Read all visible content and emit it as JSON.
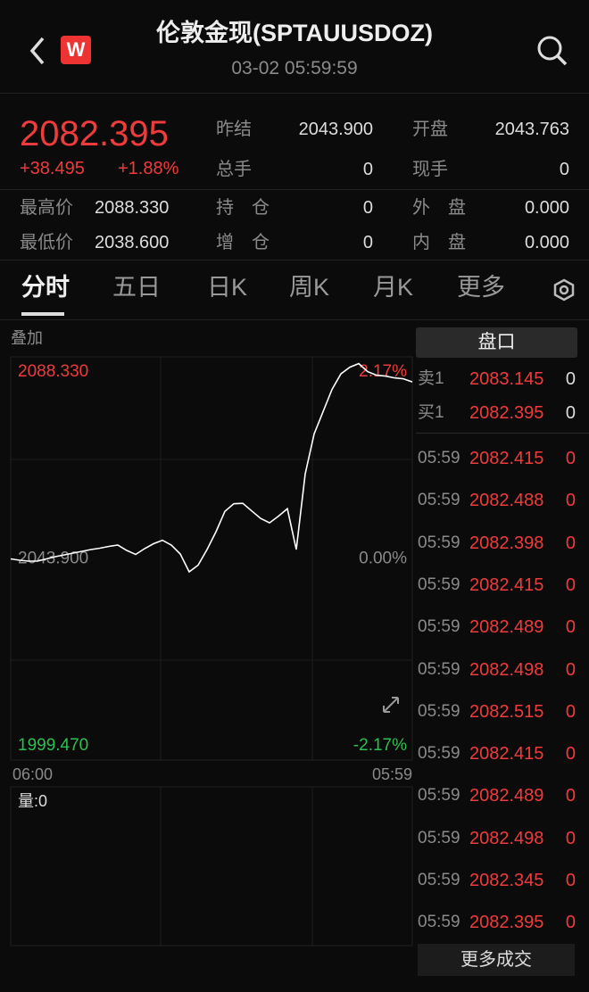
{
  "header": {
    "title": "伦敦金现(SPTAUUSDOZ)",
    "time": "03-02 05:59:59"
  },
  "quote": {
    "price": "2082.395",
    "change": "+38.495",
    "pct": "+1.88%",
    "left_stats": [
      {
        "label": "最高价",
        "value": "2088.330"
      },
      {
        "label": "最低价",
        "value": "2038.600"
      }
    ],
    "stats": [
      [
        {
          "label": "昨结",
          "value": "2043.900"
        },
        {
          "label": "开盘",
          "value": "2043.763"
        }
      ],
      [
        {
          "label": "总手",
          "value": "0"
        },
        {
          "label": "现手",
          "value": "0"
        }
      ],
      [
        {
          "label": "持　仓",
          "value": "0"
        },
        {
          "label": "外　盘",
          "value": "0.000"
        }
      ],
      [
        {
          "label": "增　仓",
          "value": "0"
        },
        {
          "label": "内　盘",
          "value": "0.000"
        }
      ]
    ]
  },
  "tabs": [
    "分时",
    "五日",
    "日K",
    "周K",
    "月K",
    "更多"
  ],
  "overlay": "叠加",
  "chart_data": {
    "type": "line",
    "color": "#ffffff",
    "values": [
      2043.9,
      2043.6,
      2043.4,
      2043.4,
      2043.9,
      2044.4,
      2044.8,
      2045.2,
      2045.6,
      2046.0,
      2046.3,
      2046.7,
      2047.0,
      2045.8,
      2044.9,
      2046.2,
      2047.3,
      2048.1,
      2047.0,
      2045.0,
      2041.0,
      2042.5,
      2046.0,
      2050.0,
      2054.6,
      2056.3,
      2056.4,
      2054.7,
      2053.0,
      2052.0,
      2053.5,
      2055.2,
      2046.0,
      2063.0,
      2072.0,
      2077.0,
      2082.0,
      2085.5,
      2087.0,
      2087.8,
      2086.0,
      2085.2,
      2085.0,
      2084.6,
      2084.4,
      2083.7
    ],
    "ylim": [
      1999.47,
      2088.33
    ],
    "yticks": [
      {
        "value": 2088.33,
        "label": "2088.330"
      },
      {
        "value": 2043.9,
        "label": "2043.900"
      },
      {
        "value": 1999.47,
        "label": "1999.470"
      }
    ],
    "y2lim": [
      -2.17,
      2.17
    ],
    "y2ticks": [
      {
        "value": 2.17,
        "label": "2.17%"
      },
      {
        "value": 0,
        "label": "0.00%"
      },
      {
        "value": -2.17,
        "label": "-2.17%"
      }
    ],
    "xtick_labels": [
      "06:00",
      "05:59"
    ],
    "volume_label": "量:0"
  },
  "order_book": {
    "title": "盘口",
    "levels": [
      {
        "label": "卖1",
        "price": "2083.145",
        "vol": "0"
      },
      {
        "label": "买1",
        "price": "2082.395",
        "vol": "0"
      }
    ],
    "trades": [
      [
        "05:59",
        "2082.415",
        "0"
      ],
      [
        "05:59",
        "2082.488",
        "0"
      ],
      [
        "05:59",
        "2082.398",
        "0"
      ],
      [
        "05:59",
        "2082.415",
        "0"
      ],
      [
        "05:59",
        "2082.489",
        "0"
      ],
      [
        "05:59",
        "2082.498",
        "0"
      ],
      [
        "05:59",
        "2082.515",
        "0"
      ],
      [
        "05:59",
        "2082.415",
        "0"
      ],
      [
        "05:59",
        "2082.489",
        "0"
      ],
      [
        "05:59",
        "2082.498",
        "0"
      ],
      [
        "05:59",
        "2082.345",
        "0"
      ],
      [
        "05:59",
        "2082.395",
        "0"
      ]
    ],
    "more": "更多成交"
  }
}
